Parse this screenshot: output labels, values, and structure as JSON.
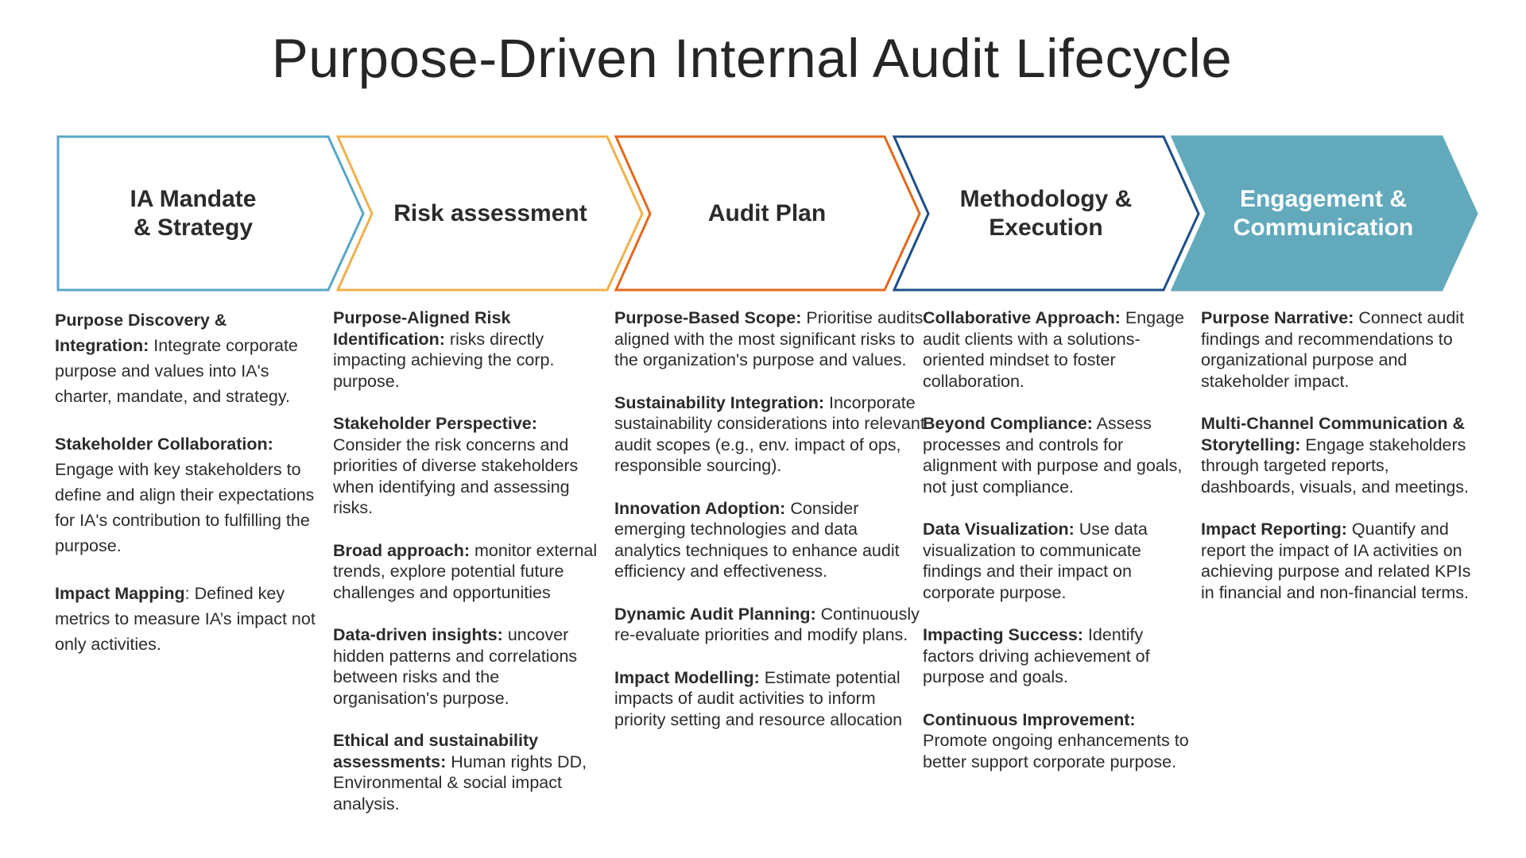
{
  "title": "Purpose-Driven Internal Audit Lifecycle",
  "stages": [
    {
      "label": "IA Mandate\n& Strategy",
      "color": "#5aa6c6",
      "filled": false,
      "items": [
        {
          "bold": "Purpose Discovery & Integration:",
          "text": " Integrate corporate purpose and values into IA's charter, mandate, and strategy."
        },
        {
          "bold": "Stakeholder Collaboration:",
          "text": " Engage with key stakeholders to define and align their expectations for IA's contribution to fulfilling the purpose."
        },
        {
          "bold": "Impact Mapping",
          "text": ": Defined key metrics to measure IA’s impact not only activities."
        }
      ]
    },
    {
      "label": "Risk assessment",
      "color": "#efb14e",
      "filled": false,
      "items": [
        {
          "bold": "Purpose-Aligned Risk Identification:",
          "text": " risks directly impacting achieving the corp. purpose."
        },
        {
          "bold": "Stakeholder Perspective:",
          "text": " Consider the risk concerns and priorities of diverse stakeholders when identifying and assessing risks."
        },
        {
          "bold": "Broad approach:",
          "text": " monitor external trends, explore potential future challenges and opportunities"
        },
        {
          "bold": "Data-driven insights:",
          "text": " uncover hidden patterns and correlations between risks and the organisation's purpose."
        },
        {
          "bold": "Ethical and sustainability assessments:",
          "text": " Human rights DD, Environmental & social impact analysis."
        }
      ]
    },
    {
      "label": "Audit Plan",
      "color": "#e2691f",
      "filled": false,
      "items": [
        {
          "bold": "Purpose-Based Scope:",
          "text": " Prioritise audits aligned with the most significant risks to the organization's purpose and values."
        },
        {
          "bold": "Sustainability Integration:",
          "text": " Incorporate sustainability considerations into relevant audit scopes (e.g., env. impact of ops, responsible sourcing)."
        },
        {
          "bold": "Innovation Adoption:",
          "text": " Consider emerging technologies and data analytics techniques to enhance audit efficiency and effectiveness."
        },
        {
          "bold": "Dynamic Audit Planning:",
          "text": " Continuously re-evaluate priorities and modify plans."
        },
        {
          "bold": "Impact Modelling:",
          "text": " Estimate potential impacts of audit activities to inform priority setting and resource allocation"
        }
      ]
    },
    {
      "label": "Methodology &\nExecution",
      "color": "#1d4e8a",
      "filled": false,
      "items": [
        {
          "bold": "Collaborative Approach:",
          "text": " Engage audit clients with a solutions-oriented mindset to foster collaboration."
        },
        {
          "bold": "Beyond Compliance:",
          "text": " Assess processes and controls for alignment with purpose and goals, not just compliance."
        },
        {
          "bold": "Data Visualization:",
          "text": " Use data visualization to communicate findings and their impact on corporate purpose."
        },
        {
          "bold": "Impacting Success:",
          "text": " Identify factors driving achievement of purpose and goals."
        },
        {
          "bold": "Continuous Improvement:",
          "text": " Promote ongoing enhancements to better support corporate purpose."
        }
      ]
    },
    {
      "label": "Engagement &\nCommunication",
      "color": "#62a9bc",
      "filled": true,
      "items": [
        {
          "bold": "Purpose Narrative:",
          "text": " Connect audit findings and recommendations to organizational purpose and stakeholder impact."
        },
        {
          "bold": "Multi-Channel Communication & Storytelling:",
          "text": " Engage stakeholders through targeted reports, dashboards, visuals, and meetings."
        },
        {
          "bold": "Impact Reporting:",
          "text": "  Quantify and report the impact of IA activities on achieving purpose and related KPIs in financial and non-financial terms."
        }
      ]
    }
  ]
}
